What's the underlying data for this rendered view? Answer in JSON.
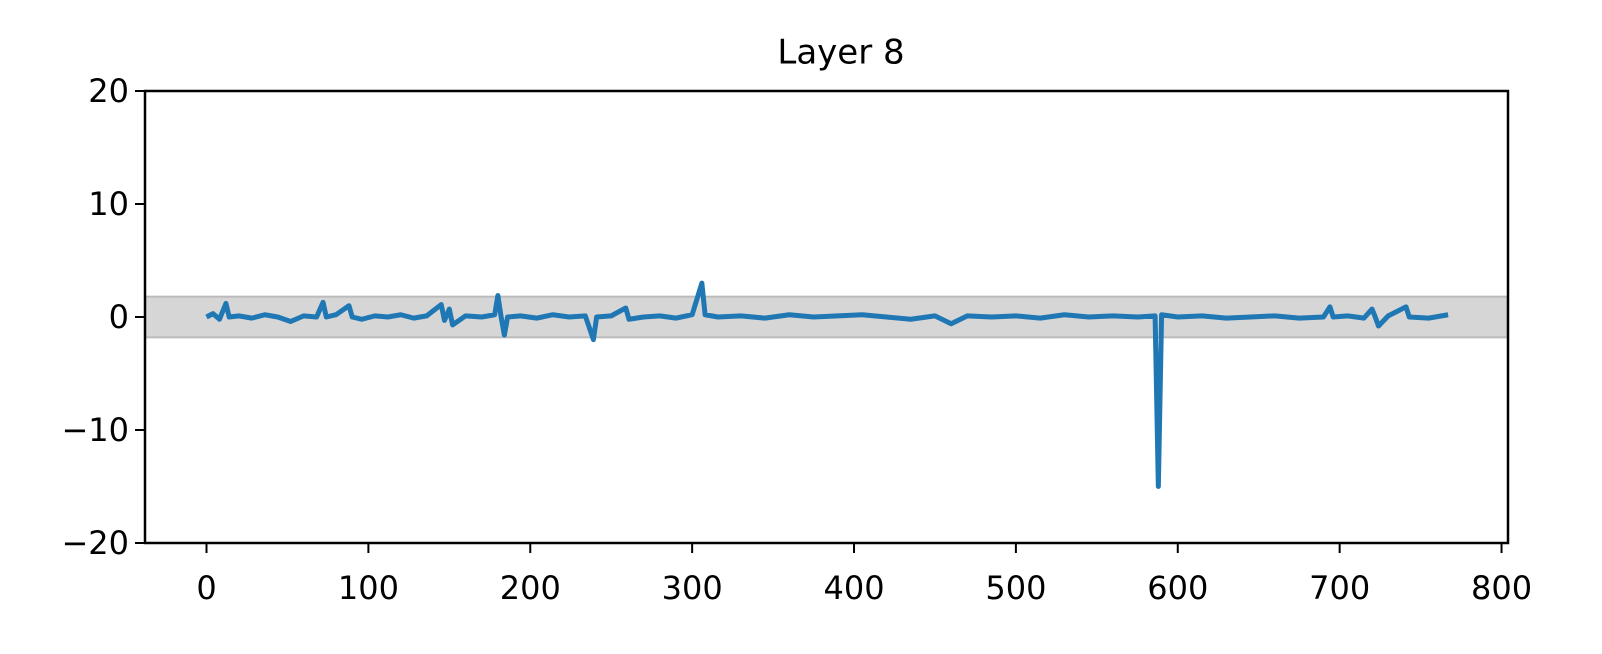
{
  "chart_data": {
    "type": "line",
    "title": "Layer 8",
    "x": [
      0,
      4,
      8,
      12,
      14,
      20,
      28,
      36,
      44,
      52,
      60,
      68,
      72,
      74,
      80,
      88,
      90,
      96,
      104,
      112,
      120,
      128,
      136,
      145,
      147,
      150,
      152,
      160,
      170,
      178,
      180,
      182,
      184,
      186,
      194,
      204,
      214,
      224,
      234,
      239,
      241,
      250,
      259,
      261,
      270,
      280,
      290,
      300,
      306,
      308,
      316,
      330,
      345,
      360,
      375,
      390,
      405,
      420,
      435,
      450,
      460,
      470,
      485,
      500,
      515,
      530,
      545,
      560,
      575,
      586,
      588,
      590,
      600,
      615,
      630,
      645,
      660,
      675,
      690,
      694,
      696,
      705,
      715,
      720,
      722,
      724,
      730,
      741,
      743,
      755,
      767
    ],
    "series": [
      {
        "color": "#1f77b4",
        "values": [
          0,
          0.3,
          -0.2,
          1.2,
          0,
          0.1,
          -0.1,
          0.2,
          0,
          -0.4,
          0.1,
          0,
          1.3,
          0,
          0.2,
          1.0,
          0,
          -0.2,
          0.1,
          0,
          0.2,
          -0.1,
          0.1,
          1.1,
          -0.3,
          0.7,
          -0.7,
          0.1,
          0,
          0.2,
          1.9,
          0,
          -1.6,
          0,
          0.1,
          -0.1,
          0.2,
          0,
          0.1,
          -2.0,
          0,
          0.1,
          0.8,
          -0.2,
          0,
          0.1,
          -0.1,
          0.2,
          3.0,
          0.2,
          0,
          0.1,
          -0.1,
          0.2,
          0,
          0.1,
          0.2,
          0,
          -0.2,
          0.1,
          -0.6,
          0.1,
          0,
          0.1,
          -0.1,
          0.2,
          0,
          0.1,
          0,
          0.1,
          -15.0,
          0.2,
          0,
          0.1,
          -0.1,
          0,
          0.1,
          -0.1,
          0,
          0.9,
          0,
          0.1,
          -0.1,
          0.7,
          0,
          -0.8,
          0.1,
          0.9,
          0,
          -0.1,
          0.2
        ]
      }
    ],
    "band": [
      -1.8,
      1.8
    ],
    "band_color": "#d6d6d6",
    "xlim": [
      -38,
      804
    ],
    "xticks": [
      0,
      100,
      200,
      300,
      400,
      500,
      600,
      700,
      800
    ],
    "ylim": [
      -20,
      20
    ],
    "yticks": [
      {
        "value": -20,
        "label": "−20"
      },
      {
        "value": -10,
        "label": "−10"
      },
      0,
      10,
      20
    ],
    "grid": false
  }
}
